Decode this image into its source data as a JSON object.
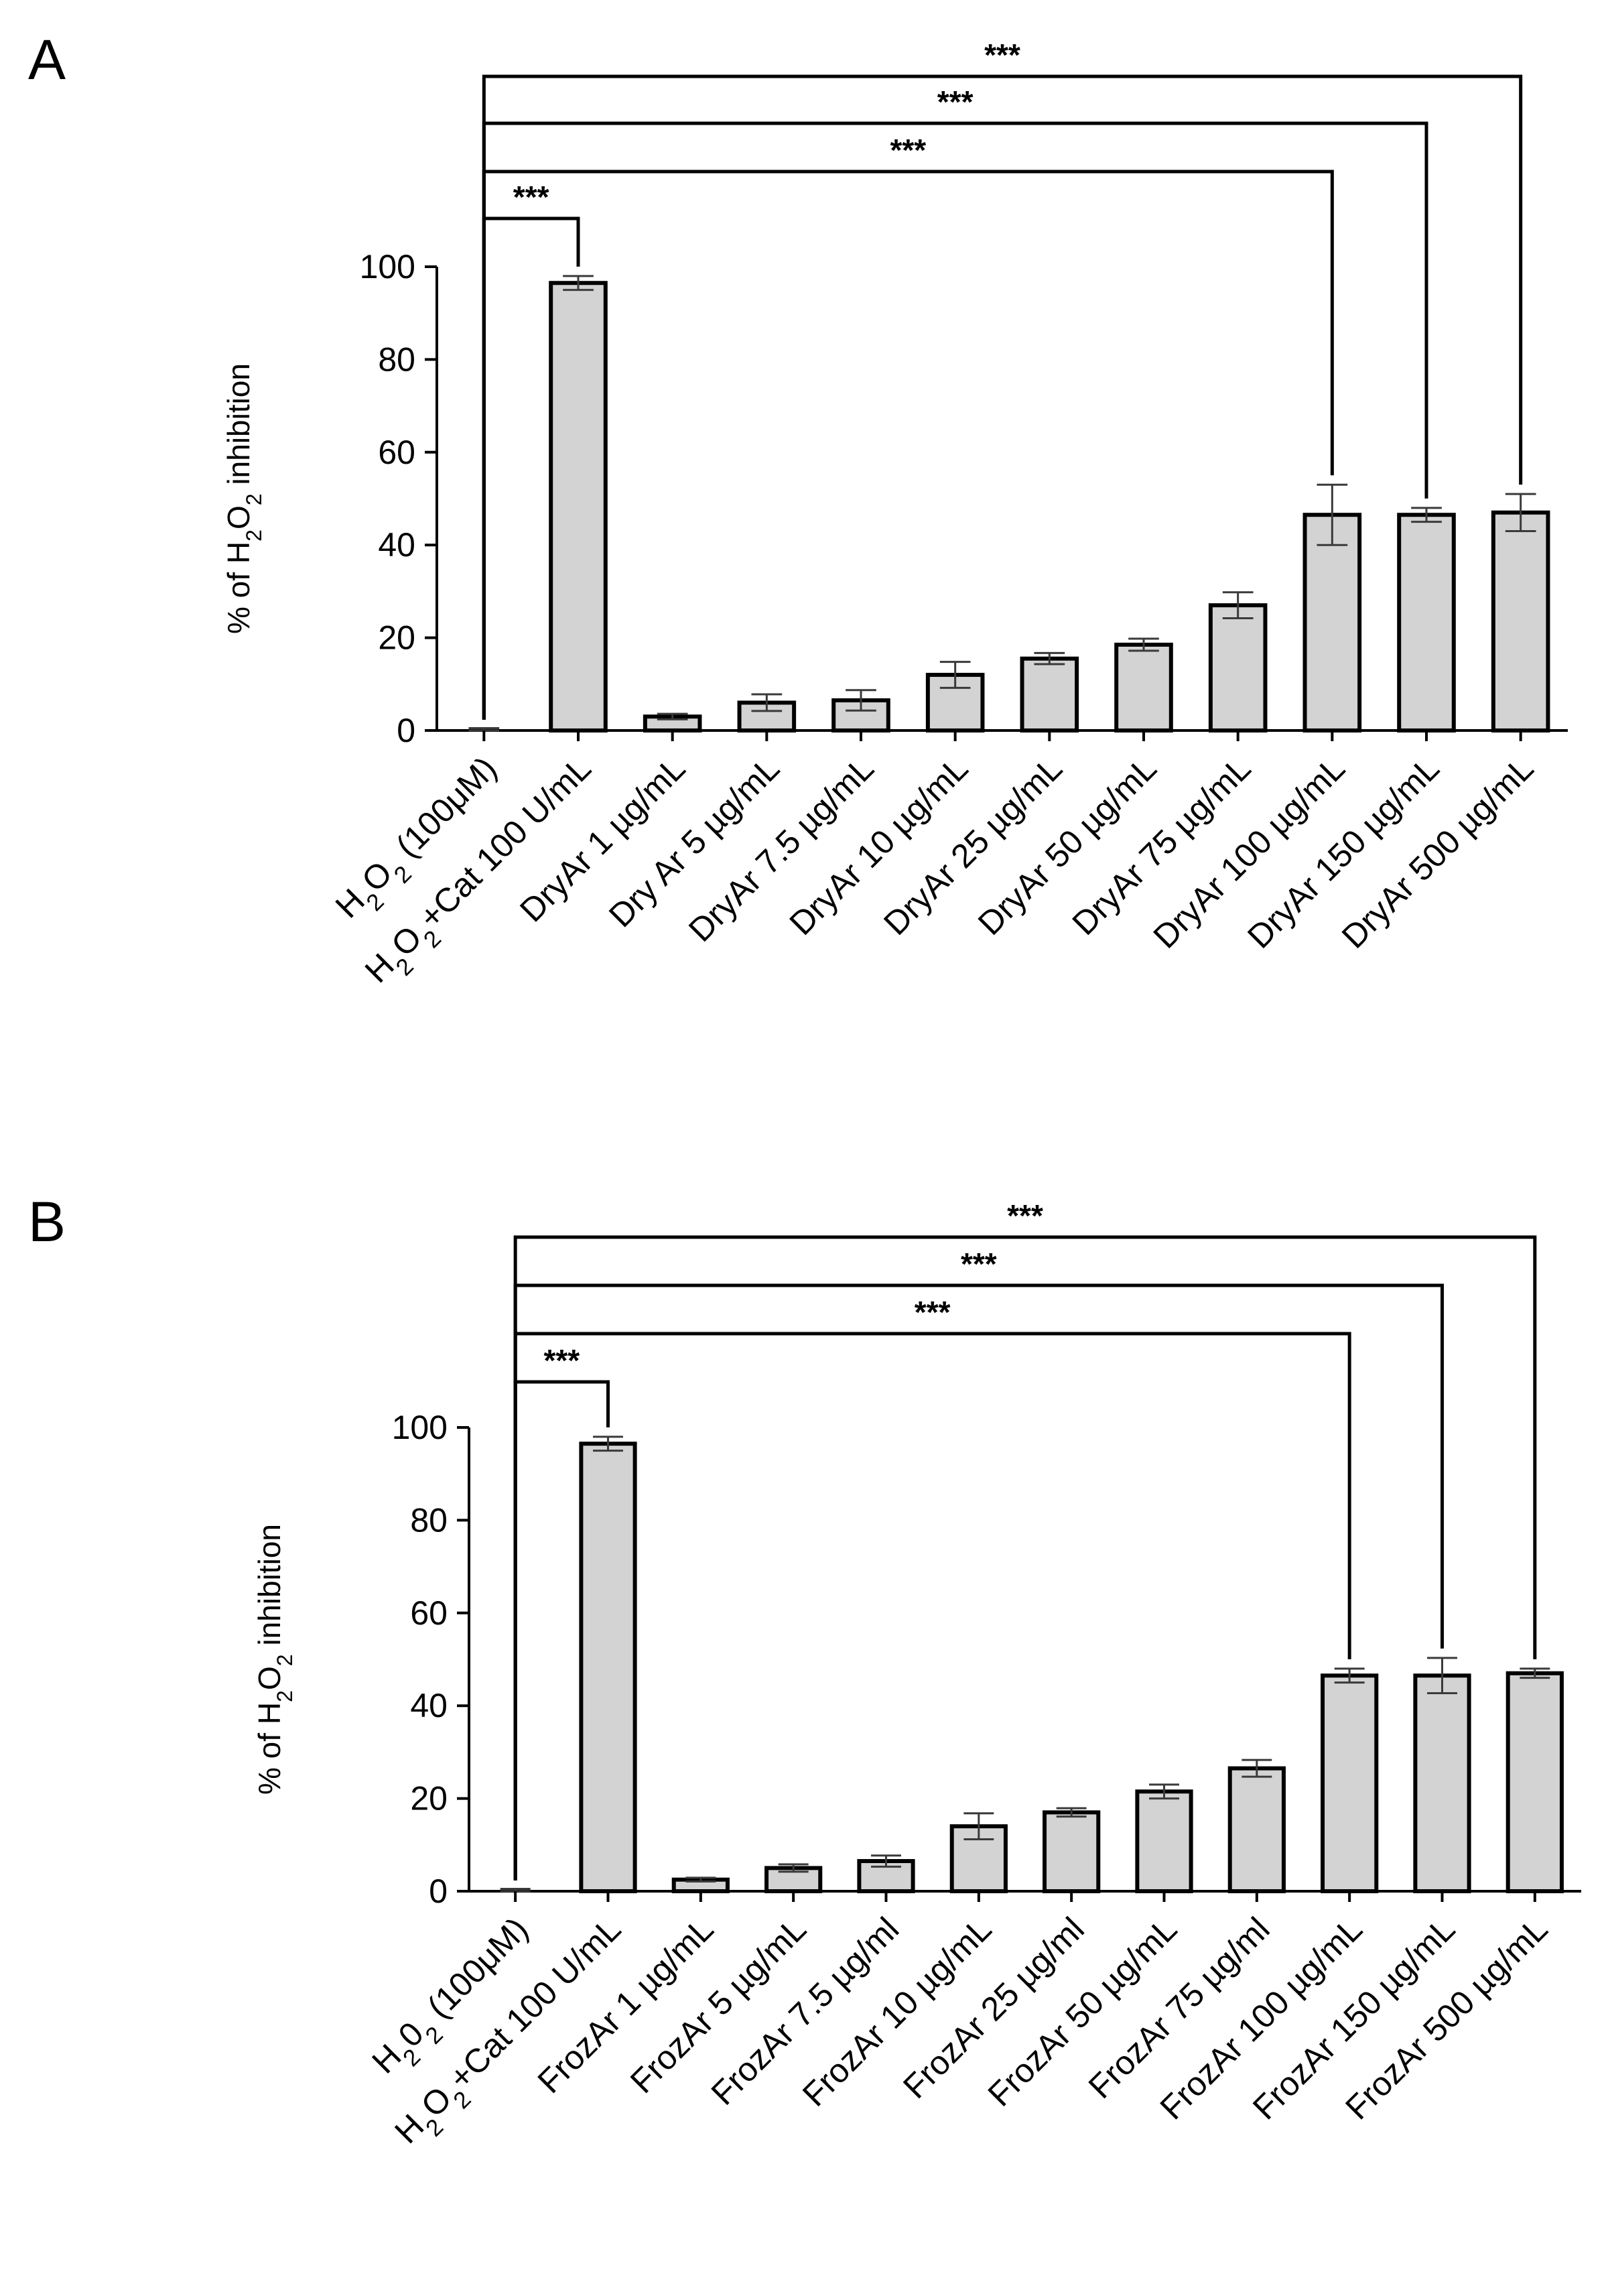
{
  "chart_data": [
    {
      "panel": "A",
      "type": "bar",
      "ylabel_parts": [
        "% of H",
        "2",
        "O",
        "2",
        " inhibition"
      ],
      "ylim": [
        0,
        100
      ],
      "yticks": [
        "0",
        "20",
        "40",
        "60",
        "80",
        "100"
      ],
      "categories": [
        {
          "label": [
            [
              "H",
              "n"
            ],
            [
              "2",
              "sub"
            ],
            [
              "O",
              "n"
            ],
            [
              "2",
              "sub"
            ],
            [
              " (100μM)",
              "n"
            ]
          ]
        },
        {
          "label": [
            [
              "H",
              "n"
            ],
            [
              "2",
              "sub"
            ],
            [
              "O",
              "n"
            ],
            [
              "2",
              "sub"
            ],
            [
              "+Cat 100 U/mL",
              "n"
            ]
          ]
        },
        {
          "label": [
            [
              "DryAr 1 µg/mL",
              "n"
            ]
          ]
        },
        {
          "label": [
            [
              "Dry Ar 5 µg/mL",
              "n"
            ]
          ]
        },
        {
          "label": [
            [
              "DryAr 7.5 µg/mL",
              "n"
            ]
          ]
        },
        {
          "label": [
            [
              "DryAr 10 µg/mL",
              "n"
            ]
          ]
        },
        {
          "label": [
            [
              "DryAr 25 µg/mL",
              "n"
            ]
          ]
        },
        {
          "label": [
            [
              "DryAr 50 µg/mL",
              "n"
            ]
          ]
        },
        {
          "label": [
            [
              "DryAr 75 µg/mL",
              "n"
            ]
          ]
        },
        {
          "label": [
            [
              "DryAr 100 µg/mL",
              "n"
            ]
          ]
        },
        {
          "label": [
            [
              "DryAr 150 µg/mL",
              "n"
            ]
          ]
        },
        {
          "label": [
            [
              "DryAr 500 µg/mL",
              "n"
            ]
          ]
        }
      ],
      "values": [
        0,
        96.5,
        3,
        6,
        6.5,
        12,
        15.5,
        18.5,
        27,
        46.5,
        46.5,
        47
      ],
      "errors": [
        0.5,
        1.5,
        0.6,
        1.8,
        2.2,
        2.8,
        1.2,
        1.3,
        2.8,
        6.5,
        1.5,
        4
      ],
      "significance": [
        {
          "from": 0,
          "to": 1,
          "label": "***"
        },
        {
          "from": 0,
          "to": 9,
          "label": "***"
        },
        {
          "from": 0,
          "to": 10,
          "label": "***"
        },
        {
          "from": 0,
          "to": 11,
          "label": "***"
        }
      ]
    },
    {
      "panel": "B",
      "type": "bar",
      "ylabel_parts": [
        "% of H",
        "2",
        "O",
        "2",
        " inhibition"
      ],
      "ylim": [
        0,
        100
      ],
      "yticks": [
        "0",
        "20",
        "40",
        "60",
        "80",
        "100"
      ],
      "categories": [
        {
          "label": [
            [
              "H",
              "n"
            ],
            [
              "2",
              "sub"
            ],
            [
              "0",
              "n"
            ],
            [
              "2",
              "sub"
            ],
            [
              " (100μM)",
              "n"
            ]
          ]
        },
        {
          "label": [
            [
              "H",
              "n"
            ],
            [
              "2",
              "sub"
            ],
            [
              "O",
              "n"
            ],
            [
              "2",
              "sub"
            ],
            [
              "+Cat 100 U/mL",
              "n"
            ]
          ]
        },
        {
          "label": [
            [
              "FrozAr 1 µg/mL",
              "n"
            ]
          ]
        },
        {
          "label": [
            [
              "FrozAr 5 µg/mL",
              "n"
            ]
          ]
        },
        {
          "label": [
            [
              "FrozAr 7.5 µg/ml",
              "n"
            ]
          ]
        },
        {
          "label": [
            [
              "FrozAr 10 µg/mL",
              "n"
            ]
          ]
        },
        {
          "label": [
            [
              "FrozAr 25 µg/ml",
              "n"
            ]
          ]
        },
        {
          "label": [
            [
              "FrozAr 50 µg/mL",
              "n"
            ]
          ]
        },
        {
          "label": [
            [
              "FrozAr 75 µg/ml",
              "n"
            ]
          ]
        },
        {
          "label": [
            [
              "FrozAr 100 µg/mL",
              "n"
            ]
          ]
        },
        {
          "label": [
            [
              "FrozAr 150 µg/mL",
              "n"
            ]
          ]
        },
        {
          "label": [
            [
              "FrozAr 500 µg/mL",
              "n"
            ]
          ]
        }
      ],
      "values": [
        0,
        96.5,
        2.5,
        5,
        6.5,
        14,
        17,
        21.5,
        26.5,
        46.5,
        46.5,
        47
      ],
      "errors": [
        0.5,
        1.5,
        0.4,
        0.8,
        1.2,
        2.8,
        0.9,
        1.5,
        1.8,
        1.5,
        3.8,
        1
      ],
      "significance": [
        {
          "from": 0,
          "to": 1,
          "label": "***"
        },
        {
          "from": 0,
          "to": 9,
          "label": "***"
        },
        {
          "from": 0,
          "to": 10,
          "label": "***"
        },
        {
          "from": 0,
          "to": 11,
          "label": "***"
        }
      ]
    }
  ],
  "colors": {
    "bar_fill": "#d3d3d3",
    "bar_stroke": "#000000",
    "error_bar": "#3a3a3a"
  }
}
